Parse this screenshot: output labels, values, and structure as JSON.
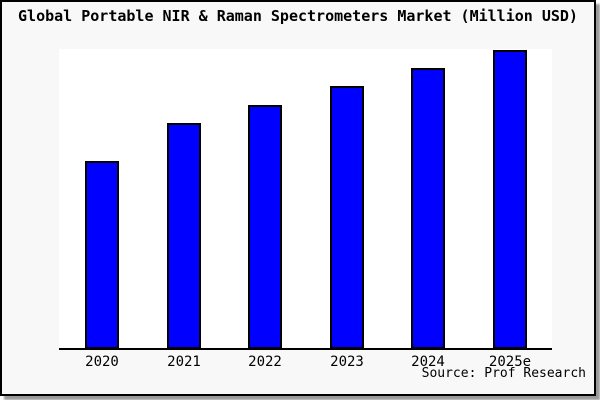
{
  "header": {
    "title": "Global Portable NIR & Raman Spectrometers Market (Million USD)"
  },
  "footer": {
    "source": "Source: Prof Research"
  },
  "colors": {
    "bar_fill": "#0000fe",
    "bar_border": "#000000",
    "axis": "#000000",
    "plot_background": "#ffffff",
    "figure_background": "#f8f8f8",
    "frame_border": "#000000",
    "shadow": "#999999"
  },
  "chart_data": {
    "type": "bar",
    "title": "Global Portable NIR & Raman Spectrometers Market (Million USD)",
    "categories": [
      "2020",
      "2021",
      "2022",
      "2023",
      "2024",
      "2025e"
    ],
    "values": [
      0.63,
      0.755,
      0.815,
      0.88,
      0.94,
      1.0
    ],
    "values_unit": "relative bar height (fraction of tallest bar, 2025e = 1.0); chart shows no numeric y-axis ticks, gridlines or data labels",
    "xlabel": "",
    "ylabel": "",
    "legend": "none",
    "grid": false,
    "y_axis_visible": false,
    "x_axis_line": true,
    "source": "Source: Prof Research"
  }
}
